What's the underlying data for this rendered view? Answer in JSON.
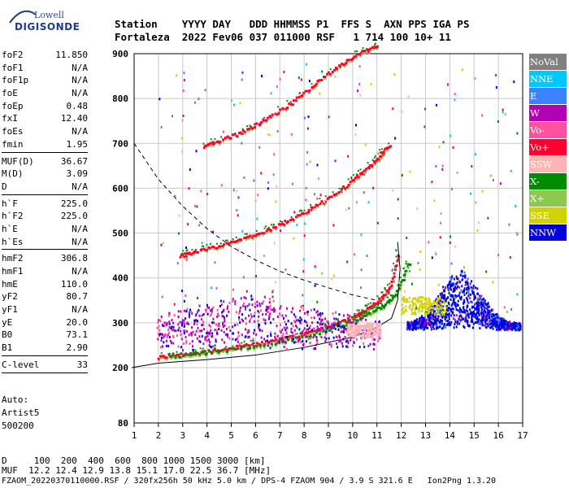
{
  "logo": {
    "line1": "Lowell",
    "line2": "DIGISONDE"
  },
  "header": {
    "labels": "Station    YYYY DAY   DDD HHMMSS P1  FFS S  AXN PPS IGA PS",
    "values": "Fortaleza  2022 Fev06 037 011000 RSF   1 714 100 10+ 11"
  },
  "params": {
    "group1": [
      {
        "k": "foF2",
        "v": "11.850"
      },
      {
        "k": "foF1",
        "v": "N/A"
      },
      {
        "k": "foF1p",
        "v": "N/A"
      },
      {
        "k": "foE",
        "v": "N/A"
      },
      {
        "k": "foEp",
        "v": "0.48"
      },
      {
        "k": "fxI",
        "v": "12.40"
      },
      {
        "k": "foEs",
        "v": "N/A"
      },
      {
        "k": "fmin",
        "v": "1.95"
      }
    ],
    "group2": [
      {
        "k": "MUF(D)",
        "v": "36.67"
      },
      {
        "k": "M(D)",
        "v": "3.09"
      },
      {
        "k": "D",
        "v": "N/A"
      }
    ],
    "group3": [
      {
        "k": "h`F",
        "v": "225.0"
      },
      {
        "k": "h`F2",
        "v": "225.0"
      },
      {
        "k": "h`E",
        "v": "N/A"
      },
      {
        "k": "h`Es",
        "v": "N/A"
      }
    ],
    "group4": [
      {
        "k": "hmF2",
        "v": "306.8"
      },
      {
        "k": "hmF1",
        "v": "N/A"
      },
      {
        "k": "hmE",
        "v": "110.0"
      },
      {
        "k": "yF2",
        "v": "80.7"
      },
      {
        "k": "yF1",
        "v": "N/A"
      },
      {
        "k": "yE",
        "v": "20.0"
      },
      {
        "k": "B0",
        "v": "73.1"
      },
      {
        "k": "B1",
        "v": "2.90"
      }
    ],
    "group5": [
      {
        "k": "C-level",
        "v": "33"
      }
    ]
  },
  "auto": {
    "line1": "Auto:",
    "line2": "Artist5",
    "line3": "500200"
  },
  "legend": [
    {
      "label": "NoVal",
      "color": "#808080"
    },
    {
      "label": "NNE",
      "color": "#00c8ff"
    },
    {
      "label": "E",
      "color": "#3c82ff"
    },
    {
      "label": "W",
      "color": "#b400b4"
    },
    {
      "label": "Vo-",
      "color": "#ff50a0"
    },
    {
      "label": "Vo+",
      "color": "#ff0030"
    },
    {
      "label": "SSW",
      "color": "#ffb4b4"
    },
    {
      "label": "X-",
      "color": "#008c00"
    },
    {
      "label": "X+",
      "color": "#8cc84b"
    },
    {
      "label": "SSE",
      "color": "#d2d200"
    },
    {
      "label": "NNW",
      "color": "#0000dc"
    }
  ],
  "bottom": {
    "row_d": "D     100  200  400  600  800 1000 1500 3000 [km]",
    "row_muf": "MUF  12.2 12.4 12.9 13.8 15.1 17.0 22.5 36.7 [MHz]",
    "footer": "FZAOM_20220370110000.RSF / 320fx256h 50 kHz 5.0 km / DPS-4 FZAOM 904 / 3.9 S 321.6 E   Ion2Png 1.3.20"
  },
  "chart_data": {
    "type": "scatter",
    "xlim": [
      1,
      17
    ],
    "ylim": [
      80,
      900
    ],
    "x_ticks": [
      1,
      2,
      3,
      4,
      5,
      6,
      7,
      8,
      9,
      10,
      11,
      12,
      13,
      14,
      15,
      16,
      17
    ],
    "y_ticks": [
      80,
      200,
      300,
      400,
      500,
      600,
      700,
      800,
      900
    ],
    "grid": true,
    "traces": [
      {
        "name": "F2 O-trace",
        "color": "#ff0030",
        "x": [
          1.9,
          3.0,
          4.0,
          5.0,
          6.0,
          7.0,
          8.0,
          9.0,
          10.0,
          10.5,
          11.0,
          11.5,
          11.85
        ],
        "y": [
          225,
          232,
          238,
          247,
          255,
          265,
          278,
          295,
          315,
          330,
          350,
          380,
          460
        ]
      },
      {
        "name": "F2 X-trace",
        "color": "#008c00",
        "x": [
          2.4,
          4.0,
          6.0,
          8.0,
          9.5,
          10.5,
          11.2,
          11.8,
          12.3
        ],
        "y": [
          226,
          236,
          250,
          272,
          296,
          318,
          340,
          372,
          440
        ]
      },
      {
        "name": "Second-hop",
        "color": "#ff0030",
        "x": [
          2.8,
          3.5,
          4.5,
          5.5,
          6.5,
          7.5,
          8.5,
          9.5,
          10.3,
          11.0,
          11.5
        ],
        "y": [
          450,
          462,
          474,
          490,
          510,
          535,
          565,
          600,
          635,
          670,
          700
        ]
      },
      {
        "name": "Third-hop",
        "color": "#ff0030",
        "x": [
          3.8,
          4.5,
          5.5,
          6.5,
          7.5,
          8.5,
          9.5,
          10.3,
          11.0
        ],
        "y": [
          695,
          708,
          730,
          760,
          795,
          840,
          880,
          905,
          920
        ]
      },
      {
        "name": "Profile",
        "color": "#000000",
        "x": [
          0.9,
          2.0,
          4.0,
          6.0,
          8.0,
          10.0,
          11.0,
          11.6,
          11.85,
          11.95,
          11.85
        ],
        "y": [
          200,
          210,
          218,
          228,
          245,
          268,
          290,
          310,
          350,
          420,
          480
        ]
      },
      {
        "name": "MUF",
        "color": "#000000",
        "dashed": true,
        "x": [
          1.0,
          2.0,
          3.0,
          4.0,
          5.0,
          6.0,
          7.0,
          8.0,
          9.0,
          10.0,
          11.0
        ],
        "y": [
          700,
          620,
          560,
          510,
          470,
          440,
          415,
          395,
          378,
          362,
          350
        ]
      }
    ]
  }
}
